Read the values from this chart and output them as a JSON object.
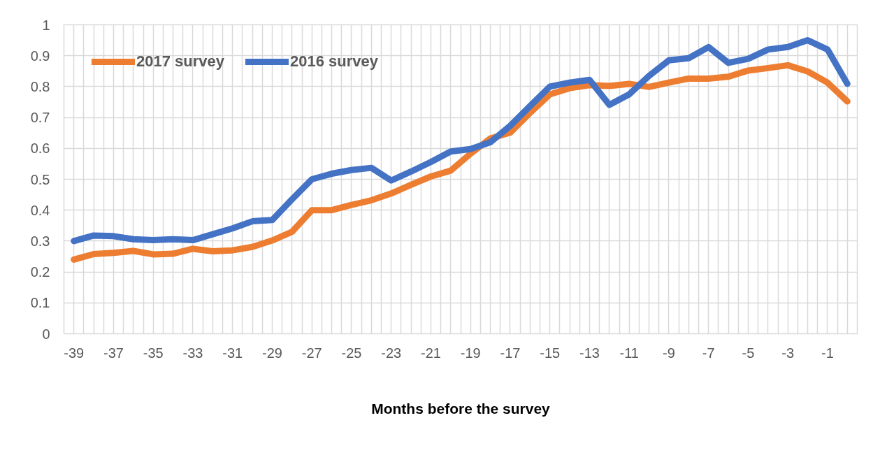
{
  "chart_data": {
    "type": "line",
    "xlabel": "Months before the survey",
    "x": [
      -39,
      -38,
      -37,
      -36,
      -35,
      -34,
      -33,
      -32,
      -31,
      -30,
      -29,
      -28,
      -27,
      -26,
      -25,
      -24,
      -23,
      -22,
      -21,
      -20,
      -19,
      -18,
      -17,
      -16,
      -15,
      -14,
      -13,
      -12,
      -11,
      -10,
      -9,
      -8,
      -7,
      -6,
      -5,
      -4,
      -3,
      -2,
      -1,
      0
    ],
    "xlim": [
      -39.5,
      0.5
    ],
    "xticks": [
      {
        "value": -39.5,
        "label": null
      },
      -39,
      {
        "value": -38.5,
        "label": null
      },
      {
        "value": -38,
        "label": null
      },
      {
        "value": -37.5,
        "label": null
      },
      -37,
      {
        "value": -36.5,
        "label": null
      },
      {
        "value": -36,
        "label": null
      },
      {
        "value": -35.5,
        "label": null
      },
      -35,
      {
        "value": -34.5,
        "label": null
      },
      {
        "value": -34,
        "label": null
      },
      {
        "value": -33.5,
        "label": null
      },
      -33,
      {
        "value": -32.5,
        "label": null
      },
      {
        "value": -32,
        "label": null
      },
      {
        "value": -31.5,
        "label": null
      },
      -31,
      {
        "value": -30.5,
        "label": null
      },
      {
        "value": -30,
        "label": null
      },
      {
        "value": -29.5,
        "label": null
      },
      -29,
      {
        "value": -28.5,
        "label": null
      },
      {
        "value": -28,
        "label": null
      },
      {
        "value": -27.5,
        "label": null
      },
      -27,
      {
        "value": -26.5,
        "label": null
      },
      {
        "value": -26,
        "label": null
      },
      {
        "value": -25.5,
        "label": null
      },
      -25,
      {
        "value": -24.5,
        "label": null
      },
      {
        "value": -24,
        "label": null
      },
      {
        "value": -23.5,
        "label": null
      },
      -23,
      {
        "value": -22.5,
        "label": null
      },
      {
        "value": -22,
        "label": null
      },
      {
        "value": -21.5,
        "label": null
      },
      -21,
      {
        "value": -20.5,
        "label": null
      },
      {
        "value": -20,
        "label": null
      },
      {
        "value": -19.5,
        "label": null
      },
      -19,
      {
        "value": -18.5,
        "label": null
      },
      {
        "value": -18,
        "label": null
      },
      {
        "value": -17.5,
        "label": null
      },
      -17,
      {
        "value": -16.5,
        "label": null
      },
      {
        "value": -16,
        "label": null
      },
      {
        "value": -15.5,
        "label": null
      },
      -15,
      {
        "value": -14.5,
        "label": null
      },
      {
        "value": -14,
        "label": null
      },
      {
        "value": -13.5,
        "label": null
      },
      -13,
      {
        "value": -12.5,
        "label": null
      },
      {
        "value": -12,
        "label": null
      },
      {
        "value": -11.5,
        "label": null
      },
      -11,
      {
        "value": -10.5,
        "label": null
      },
      {
        "value": -10,
        "label": null
      },
      {
        "value": -9.5,
        "label": null
      },
      -9,
      {
        "value": -8.5,
        "label": null
      },
      {
        "value": -8,
        "label": null
      },
      {
        "value": -7.5,
        "label": null
      },
      -7,
      {
        "value": -6.5,
        "label": null
      },
      {
        "value": -6,
        "label": null
      },
      {
        "value": -5.5,
        "label": null
      },
      -5,
      {
        "value": -4.5,
        "label": null
      },
      {
        "value": -4,
        "label": null
      },
      {
        "value": -3.5,
        "label": null
      },
      -3,
      {
        "value": -2.5,
        "label": null
      },
      {
        "value": -2,
        "label": null
      },
      {
        "value": -1.5,
        "label": null
      },
      -1,
      {
        "value": -0.5,
        "label": null
      },
      {
        "value": 0,
        "label": null
      },
      {
        "value": 0.5,
        "label": null
      }
    ],
    "ylim": [
      0,
      1
    ],
    "yticks": [
      0,
      0.1,
      0.2,
      0.3,
      0.4,
      0.5,
      0.6,
      0.7,
      0.8,
      0.9,
      1
    ],
    "grid": true,
    "legend": "top left",
    "series": [
      {
        "name": "2017 survey",
        "color": "#ed7d31",
        "values": [
          0.24,
          0.258,
          0.262,
          0.268,
          0.257,
          0.259,
          0.275,
          0.267,
          0.27,
          0.281,
          0.302,
          0.33,
          0.4,
          0.4,
          0.417,
          0.432,
          0.454,
          0.482,
          0.509,
          0.528,
          0.583,
          0.632,
          0.651,
          0.715,
          0.775,
          0.795,
          0.805,
          0.802,
          0.809,
          0.799,
          0.813,
          0.826,
          0.826,
          0.832,
          0.852,
          0.86,
          0.869,
          0.849,
          0.813,
          0.752
        ]
      },
      {
        "name": "2016 survey",
        "color": "#4472c4",
        "values": [
          0.3,
          0.318,
          0.316,
          0.306,
          0.303,
          0.306,
          0.303,
          0.322,
          0.341,
          0.364,
          0.368,
          0.435,
          0.5,
          0.518,
          0.53,
          0.537,
          0.496,
          0.525,
          0.556,
          0.59,
          0.598,
          0.62,
          0.673,
          0.737,
          0.8,
          0.813,
          0.822,
          0.741,
          0.775,
          0.835,
          0.885,
          0.892,
          0.928,
          0.877,
          0.89,
          0.92,
          0.928,
          0.95,
          0.92,
          0.809
        ]
      }
    ]
  }
}
